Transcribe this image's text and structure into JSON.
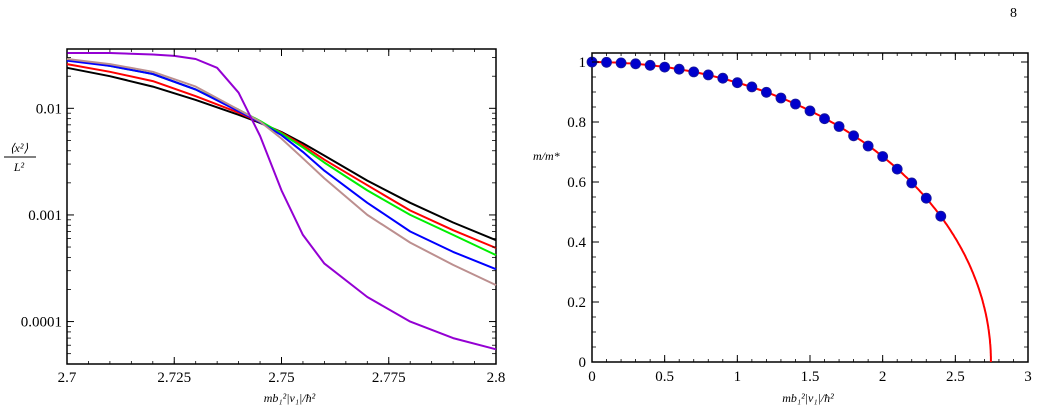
{
  "page_number": "8",
  "chart_data": [
    {
      "type": "line",
      "yscale": "log",
      "xlabel": "mb₁²|v₁|/ħ²",
      "ylabel_num": "⟨x²⟩",
      "ylabel_den": "L²",
      "xlim": [
        2.7,
        2.8
      ],
      "ylim": [
        4e-05,
        0.036
      ],
      "xticks": [
        2.7,
        2.725,
        2.75,
        2.775,
        2.8
      ],
      "xtick_labels": [
        "2.7",
        "2.725",
        "2.75",
        "2.775",
        "2.8"
      ],
      "yticks": [
        0.0001,
        0.001,
        0.01
      ],
      "ytick_labels": [
        "0.0001",
        "0.001",
        "0.01"
      ],
      "grid": false,
      "series": [
        {
          "color": "#000000",
          "x": [
            2.7,
            2.71,
            2.72,
            2.73,
            2.74,
            2.745,
            2.75,
            2.755,
            2.76,
            2.77,
            2.78,
            2.79,
            2.8
          ],
          "y": [
            0.024,
            0.02,
            0.016,
            0.012,
            0.0087,
            0.0073,
            0.006,
            0.0047,
            0.0036,
            0.0021,
            0.0013,
            0.00085,
            0.00058
          ]
        },
        {
          "color": "#ff0000",
          "x": [
            2.7,
            2.71,
            2.72,
            2.73,
            2.74,
            2.745,
            2.75,
            2.755,
            2.76,
            2.77,
            2.78,
            2.79,
            2.8
          ],
          "y": [
            0.026,
            0.022,
            0.018,
            0.013,
            0.0091,
            0.0074,
            0.0059,
            0.0045,
            0.0033,
            0.0019,
            0.0011,
            0.00072,
            0.00049
          ]
        },
        {
          "color": "#00ee00",
          "x": [
            2.7,
            2.71,
            2.72,
            2.73,
            2.74,
            2.745,
            2.75,
            2.755,
            2.76,
            2.77,
            2.78,
            2.79,
            2.8
          ],
          "y": [
            0.029,
            0.025,
            0.021,
            0.015,
            0.0097,
            0.0076,
            0.0058,
            0.0043,
            0.0031,
            0.0017,
            0.001,
            0.00065,
            0.00042
          ]
        },
        {
          "color": "#0000ff",
          "x": [
            2.7,
            2.71,
            2.72,
            2.73,
            2.74,
            2.745,
            2.75,
            2.755,
            2.76,
            2.77,
            2.78,
            2.79,
            2.8
          ],
          "y": [
            0.028,
            0.025,
            0.021,
            0.015,
            0.0094,
            0.0074,
            0.0056,
            0.0039,
            0.0026,
            0.0013,
            0.0007,
            0.00045,
            0.00031
          ]
        },
        {
          "color": "#bc8f8f",
          "x": [
            2.7,
            2.71,
            2.72,
            2.73,
            2.74,
            2.745,
            2.75,
            2.755,
            2.76,
            2.77,
            2.78,
            2.79,
            2.8
          ],
          "y": [
            0.029,
            0.026,
            0.022,
            0.016,
            0.0097,
            0.0075,
            0.0052,
            0.0034,
            0.0022,
            0.001,
            0.00055,
            0.00034,
            0.00022
          ]
        },
        {
          "color": "#9400d3",
          "x": [
            2.7,
            2.71,
            2.72,
            2.725,
            2.73,
            2.735,
            2.74,
            2.745,
            2.75,
            2.755,
            2.76,
            2.77,
            2.78,
            2.79,
            2.8
          ],
          "y": [
            0.033,
            0.033,
            0.032,
            0.031,
            0.029,
            0.024,
            0.014,
            0.0055,
            0.0017,
            0.00065,
            0.00035,
            0.00017,
            0.0001,
            7e-05,
            5.5e-05
          ]
        }
      ]
    },
    {
      "type": "line+scatter",
      "xlabel": "mb₁²|v₁|/ħ²",
      "ylabel": "m/m*",
      "xlim": [
        0,
        3
      ],
      "ylim": [
        0,
        1.03
      ],
      "xticks": [
        0,
        0.5,
        1,
        1.5,
        2,
        2.5,
        3
      ],
      "xtick_labels": [
        "0",
        "0.5",
        "1",
        "1.5",
        "2",
        "2.5",
        "3"
      ],
      "yticks": [
        0,
        0.2,
        0.4,
        0.6,
        0.8,
        1
      ],
      "ytick_labels": [
        "0",
        "0.2",
        "0.4",
        "0.6",
        "0.8",
        "1"
      ],
      "grid": false,
      "line": {
        "color": "#ff0000",
        "xc": 2.745,
        "description_values": "m/m* = sqrt(1 - (x/xc)^2)"
      },
      "points": {
        "color": "#0000cc",
        "x": [
          0,
          0.1,
          0.2,
          0.3,
          0.4,
          0.5,
          0.6,
          0.7,
          0.8,
          0.9,
          1.0,
          1.1,
          1.2,
          1.3,
          1.4,
          1.5,
          1.6,
          1.7,
          1.8,
          1.9,
          2.0,
          2.1,
          2.2,
          2.3,
          2.4
        ],
        "y": [
          1.0,
          0.999,
          0.997,
          0.994,
          0.989,
          0.983,
          0.976,
          0.967,
          0.957,
          0.946,
          0.931,
          0.917,
          0.899,
          0.88,
          0.86,
          0.837,
          0.811,
          0.785,
          0.754,
          0.72,
          0.685,
          0.643,
          0.597,
          0.546,
          0.486
        ]
      }
    }
  ]
}
